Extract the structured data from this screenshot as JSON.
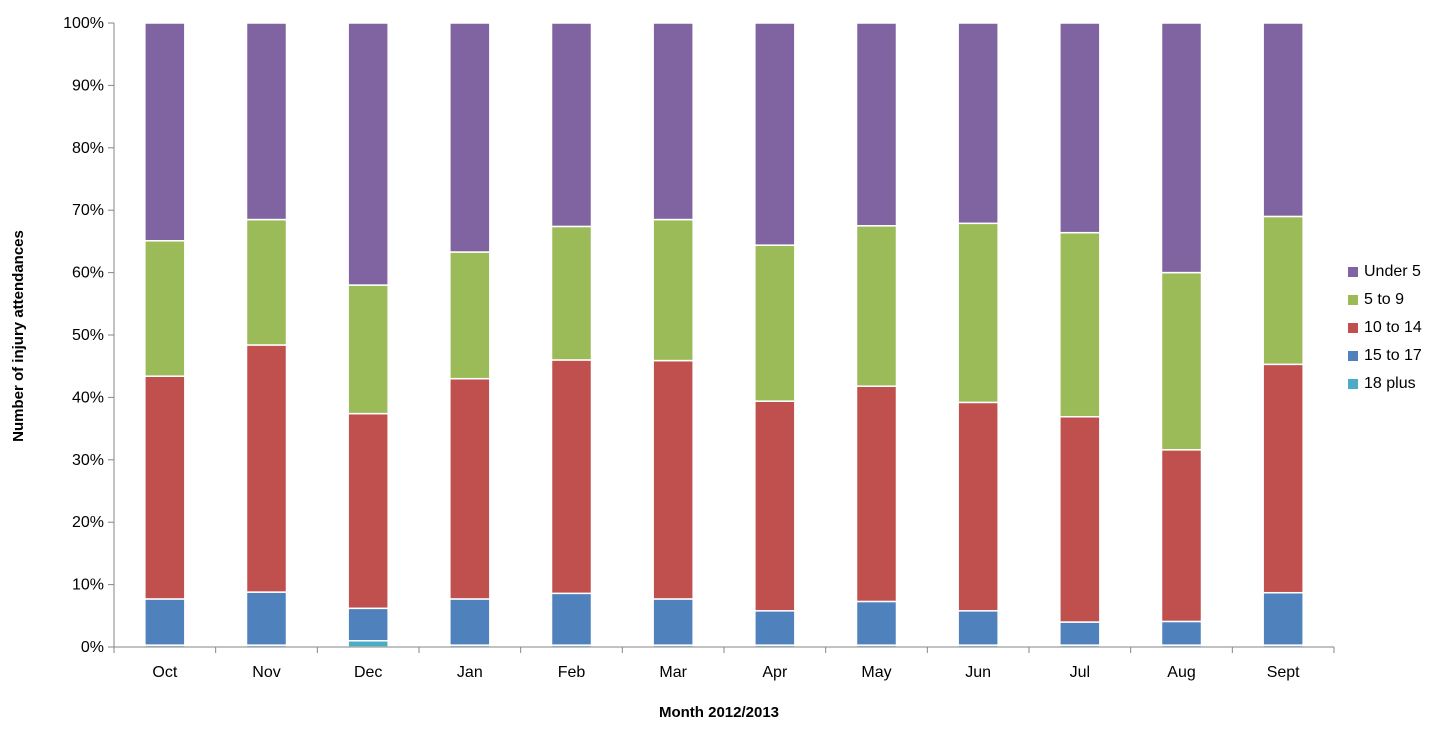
{
  "chart_data": {
    "type": "bar",
    "stacked": true,
    "percent": true,
    "categories": [
      "Oct",
      "Nov",
      "Dec",
      "Jan",
      "Feb",
      "Mar",
      "Apr",
      "May",
      "Jun",
      "Jul",
      "Aug",
      "Sept"
    ],
    "series": [
      {
        "name": "18 plus",
        "color": "#4BACC6",
        "values": [
          0.3,
          0.3,
          1.0,
          0.3,
          0.3,
          0.3,
          0.3,
          0.3,
          0.3,
          0.3,
          0.3,
          0.3
        ]
      },
      {
        "name": "15 to 17",
        "color": "#4F81BD",
        "values": [
          7.4,
          8.5,
          5.2,
          7.4,
          8.3,
          7.4,
          5.5,
          7.0,
          5.5,
          3.7,
          3.8,
          8.4
        ]
      },
      {
        "name": "10 to 14",
        "color": "#C0504D",
        "values": [
          35.7,
          39.6,
          31.2,
          35.3,
          37.4,
          38.2,
          33.6,
          34.5,
          33.4,
          32.9,
          27.5,
          36.6
        ]
      },
      {
        "name": "5 to 9",
        "color": "#9BBB59",
        "values": [
          21.7,
          20.1,
          20.6,
          20.3,
          21.4,
          22.6,
          25.0,
          25.7,
          28.7,
          29.5,
          28.4,
          23.7
        ]
      },
      {
        "name": "Under 5",
        "color": "#8064A2",
        "values": [
          34.9,
          31.5,
          42.0,
          36.7,
          32.6,
          31.5,
          35.6,
          32.5,
          32.1,
          33.6,
          40.0,
          31.0
        ]
      }
    ],
    "legend_order": [
      "Under 5",
      "5 to 9",
      "10 to 14",
      "15 to 17",
      "18 plus"
    ],
    "yticks": [
      "0%",
      "10%",
      "20%",
      "30%",
      "40%",
      "50%",
      "60%",
      "70%",
      "80%",
      "90%",
      "100%"
    ],
    "ylim": [
      0,
      100
    ],
    "xlabel": "Month 2012/2013",
    "ylabel": "Number of injury attendances",
    "legend_position": "right",
    "grid": false
  }
}
